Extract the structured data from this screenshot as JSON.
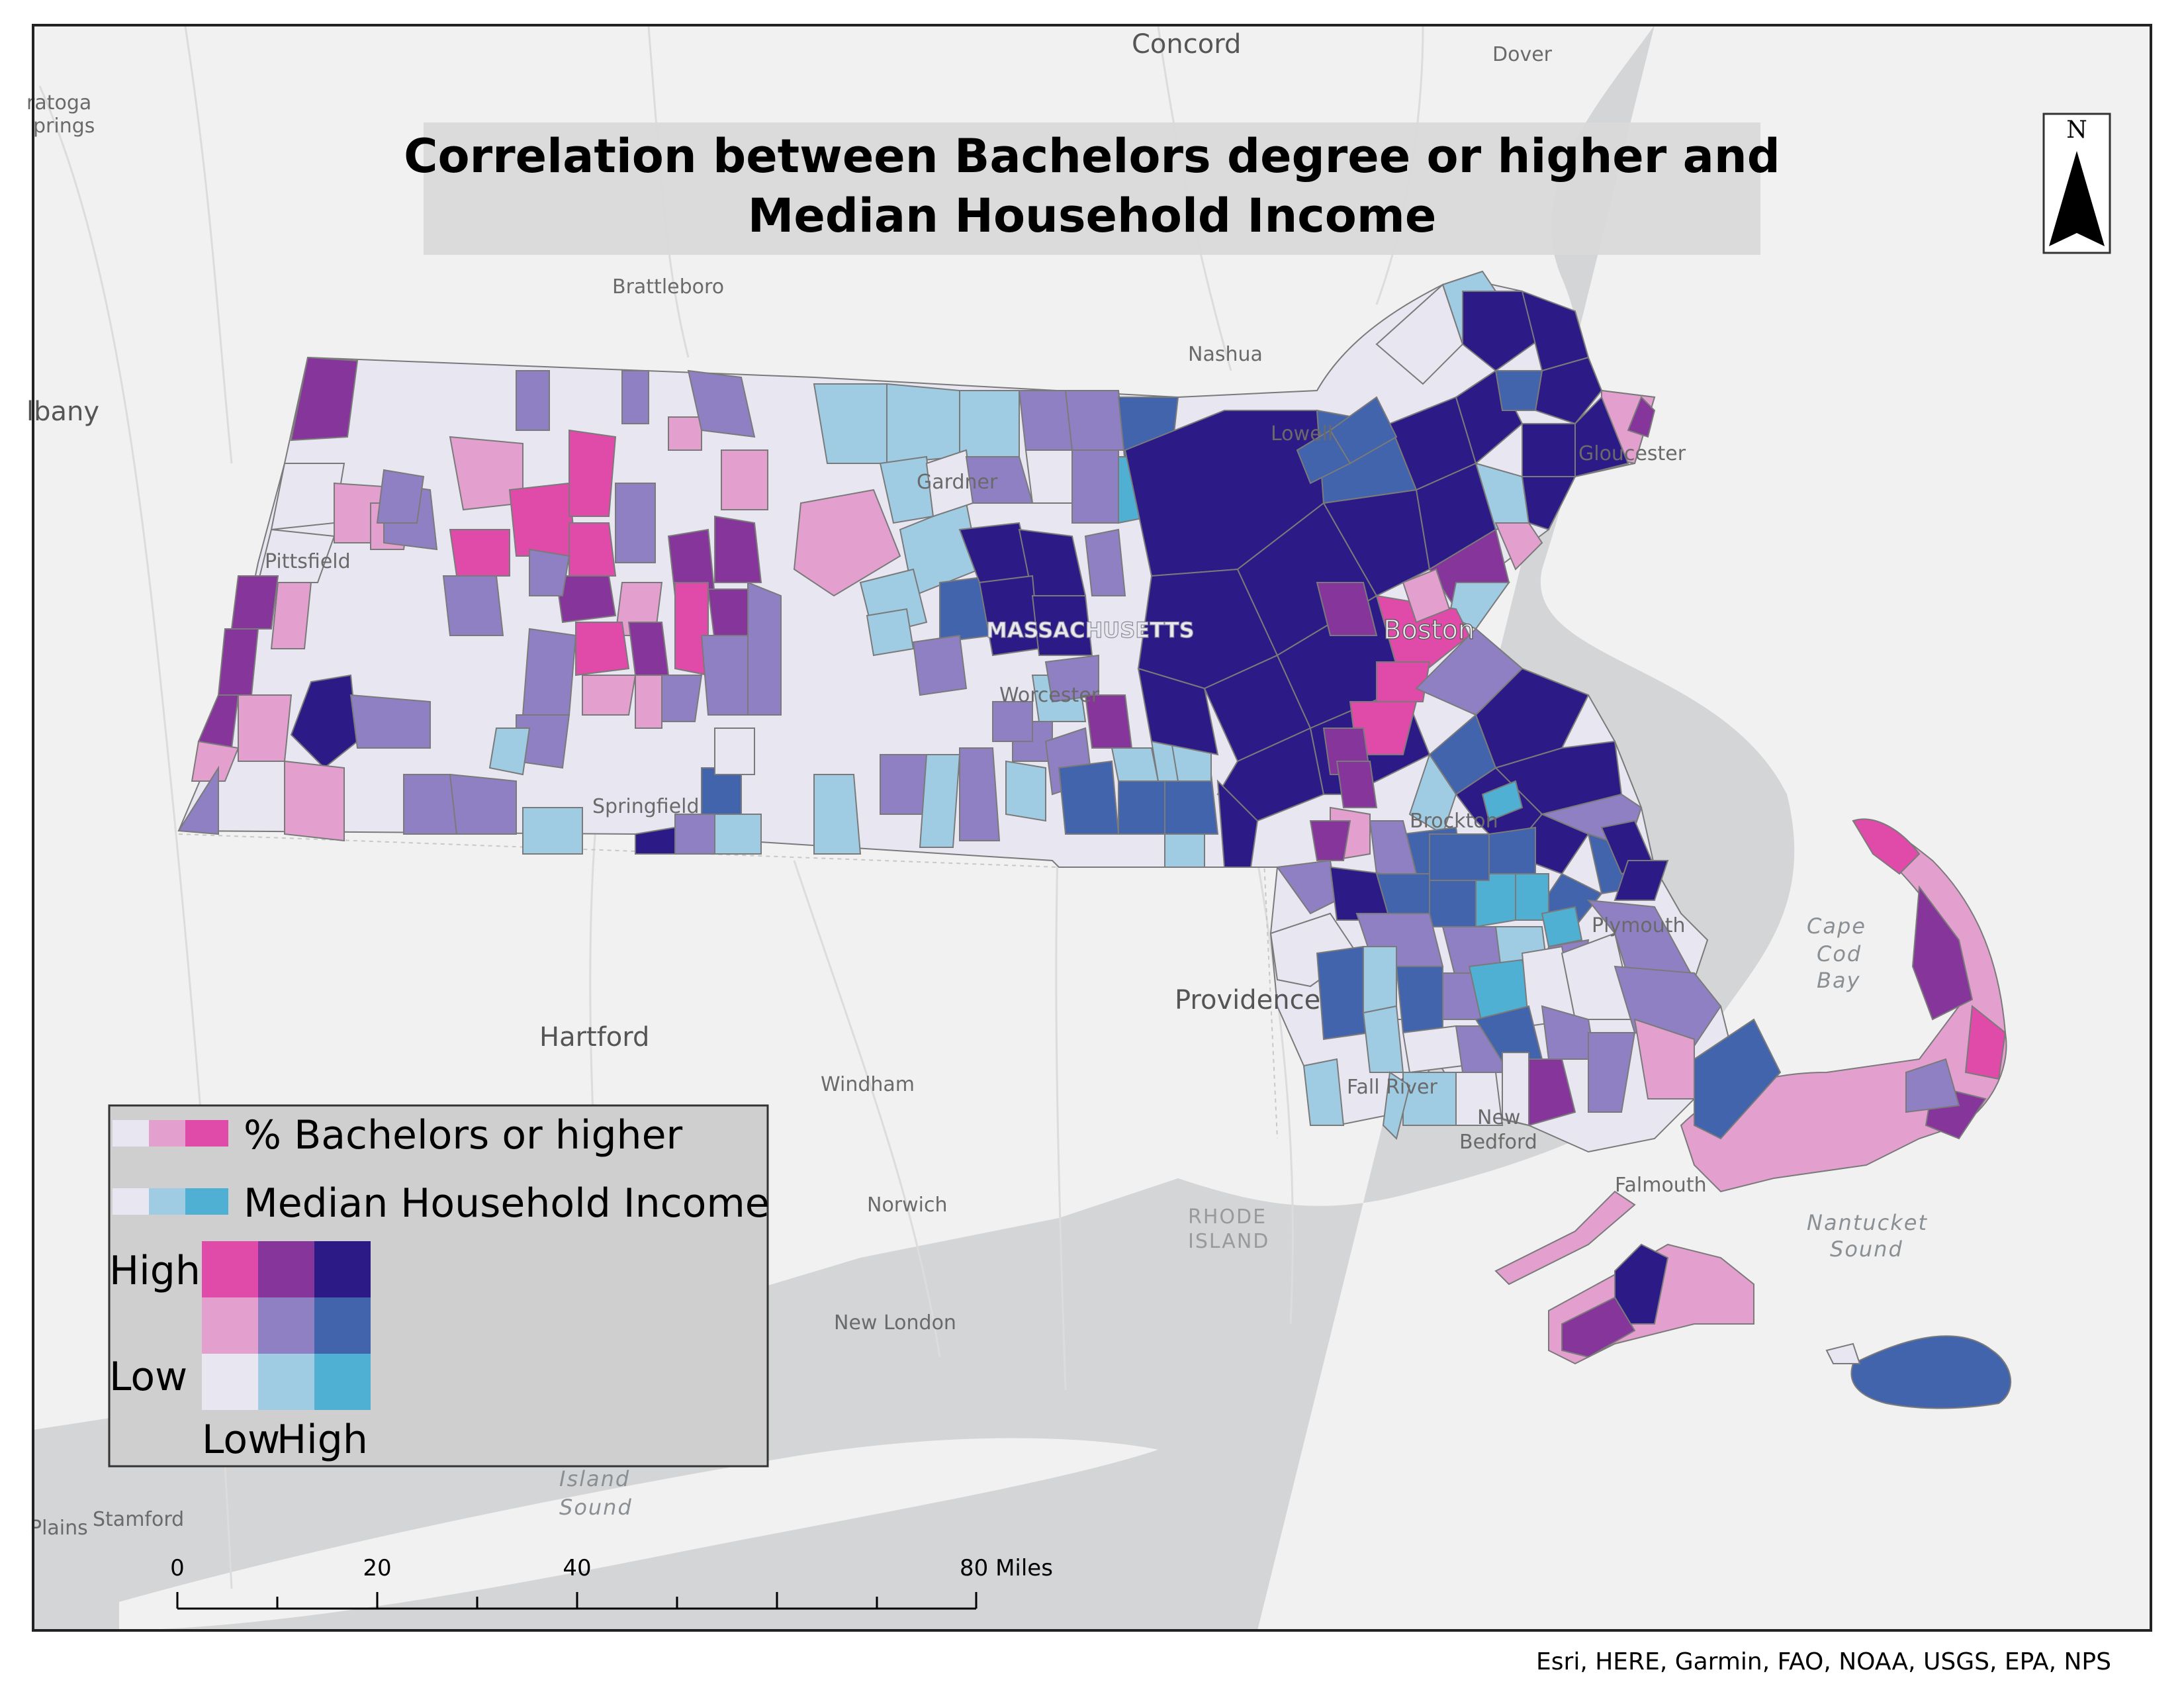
{
  "title": {
    "line1": "Correlation between Bachelors degree or higher and",
    "line2": "Median Household Income"
  },
  "north_arrow": {
    "label": "N"
  },
  "places": [
    "Concord",
    "Dover",
    "ratoga",
    "prings",
    "lbany",
    "Brattleboro",
    "Nashua",
    "Lowell",
    "Gloucester",
    "Gardner",
    "Pittsfield",
    "MASSACHUSETTS",
    "Boston",
    "Worcester",
    "Springfield",
    "Brockton",
    "Plymouth",
    "Providence",
    "Hartford",
    "Windham",
    "Fall River",
    "New",
    "Bedford",
    "Falmouth",
    "Norwich",
    "RHODE",
    "ISLAND",
    "New London",
    "Stamford",
    "Plains"
  ],
  "water_labels": [
    "Cape",
    "Cod",
    "Bay",
    "Nantucket",
    "Sound",
    "Island",
    "Sound"
  ],
  "legend": {
    "bachelors_label": "% Bachelors or higher",
    "income_label": "Median Household Income",
    "high_label": "High",
    "low_label": "Low",
    "low_x_label": "Low",
    "high_x_label": "High"
  },
  "colors": {
    "bachelors_ramp": [
      "#e8e6f0",
      "#e3a0cf",
      "#e04aa8"
    ],
    "income_ramp": [
      "#e8e6f0",
      "#9fcbe3",
      "#4fb0d3"
    ],
    "bivariate": {
      "high": [
        "#e04aa8",
        "#86359a",
        "#2c1a86"
      ],
      "mid": [
        "#e3a0cf",
        "#8f80c4",
        "#4164ad"
      ],
      "low": [
        "#e8e6f0",
        "#9fcbe3",
        "#4fb0d3"
      ]
    },
    "sea": "#d3d5d6",
    "land": "#f1f1f1"
  },
  "scale_bar": {
    "ticks": [
      "0",
      "20",
      "40",
      "80 Miles"
    ]
  },
  "credit": "Esri, HERE, Garmin, FAO, NOAA, USGS, EPA, NPS"
}
